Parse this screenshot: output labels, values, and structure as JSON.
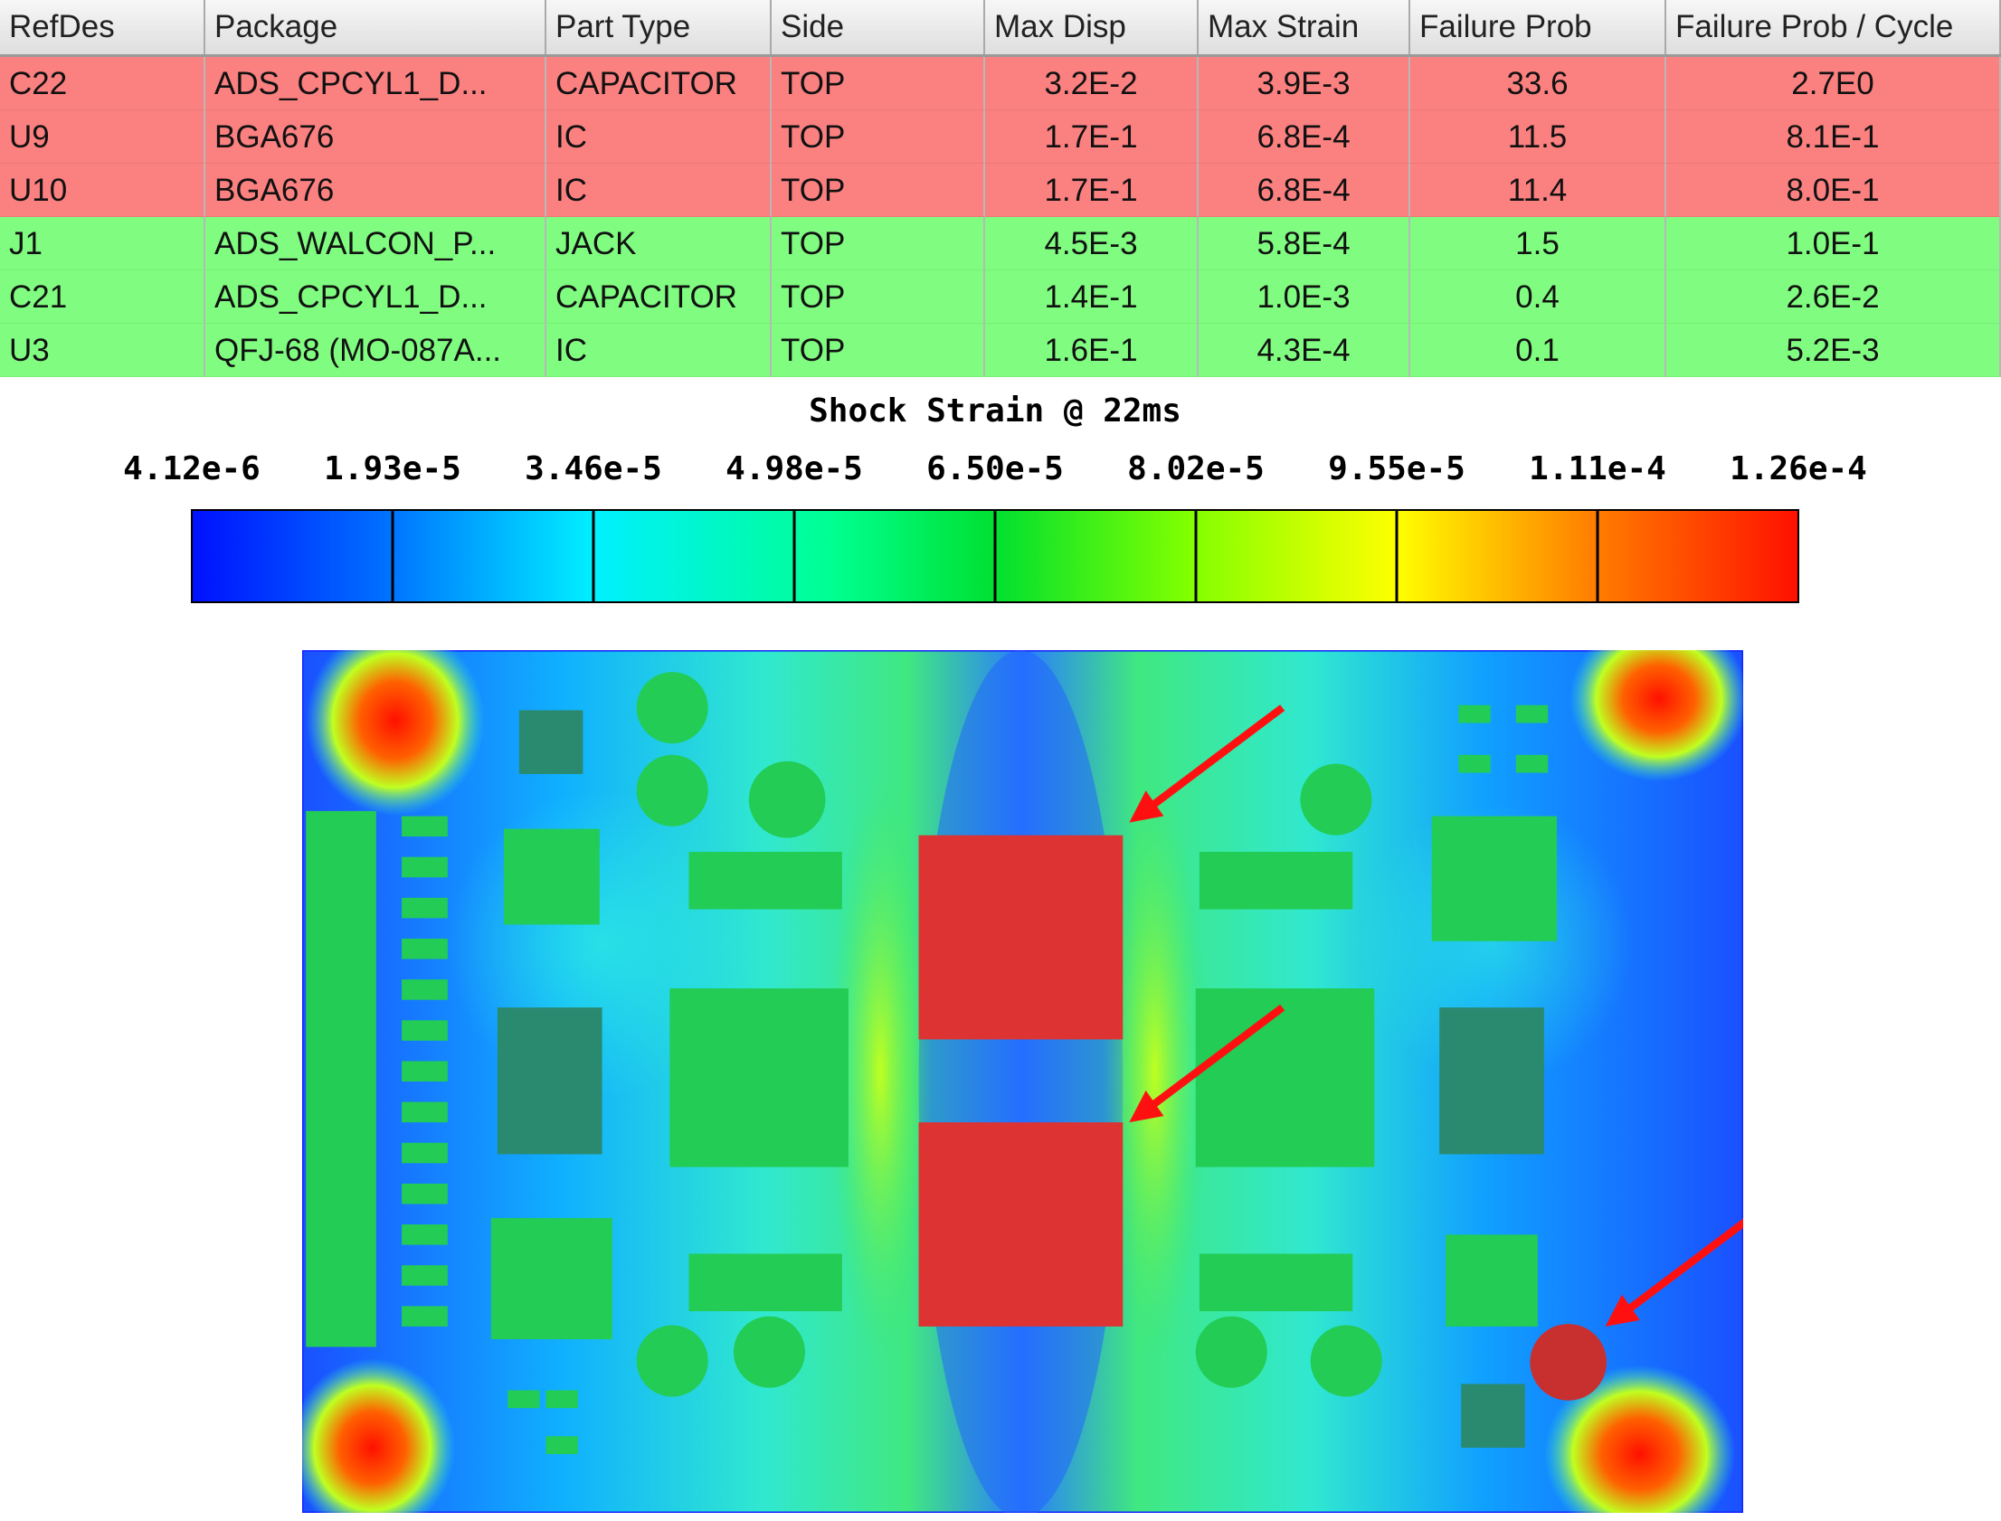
{
  "table": {
    "columns": [
      "RefDes",
      "Package",
      "Part Type",
      "Side",
      "Max Disp",
      "Max Strain",
      "Failure Prob",
      "Failure Prob / Cycle"
    ],
    "rows": [
      [
        "C22",
        "ADS_CPCYL1_D...",
        "CAPACITOR",
        "TOP",
        "3.2E-2",
        "3.9E-3",
        "33.6",
        "2.7E0"
      ],
      [
        "U9",
        "BGA676",
        "IC",
        "TOP",
        "1.7E-1",
        "6.8E-4",
        "11.5",
        "8.1E-1"
      ],
      [
        "U10",
        "BGA676",
        "IC",
        "TOP",
        "1.7E-1",
        "6.8E-4",
        "11.4",
        "8.0E-1"
      ],
      [
        "J1",
        "ADS_WALCON_P...",
        "JACK",
        "TOP",
        "4.5E-3",
        "5.8E-4",
        "1.5",
        "1.0E-1"
      ],
      [
        "C21",
        "ADS_CPCYL1_D...",
        "CAPACITOR",
        "TOP",
        "1.4E-1",
        "1.0E-3",
        "0.4",
        "2.6E-2"
      ],
      [
        "U3",
        "QFJ-68 (MO-087A...",
        "IC",
        "TOP",
        "1.6E-1",
        "4.3E-4",
        "0.1",
        "5.2E-3"
      ]
    ],
    "row_colors": [
      "#fb8080",
      "#fb8080",
      "#fb8080",
      "#80fc80",
      "#80fc80",
      "#80fc80"
    ]
  },
  "legend": {
    "title": "Shock Strain @ 22ms",
    "ticks": [
      "4.12e-6",
      "1.93e-5",
      "3.46e-5",
      "4.98e-5",
      "6.50e-5",
      "8.02e-5",
      "9.55e-5",
      "1.11e-4",
      "1.26e-4"
    ]
  }
}
